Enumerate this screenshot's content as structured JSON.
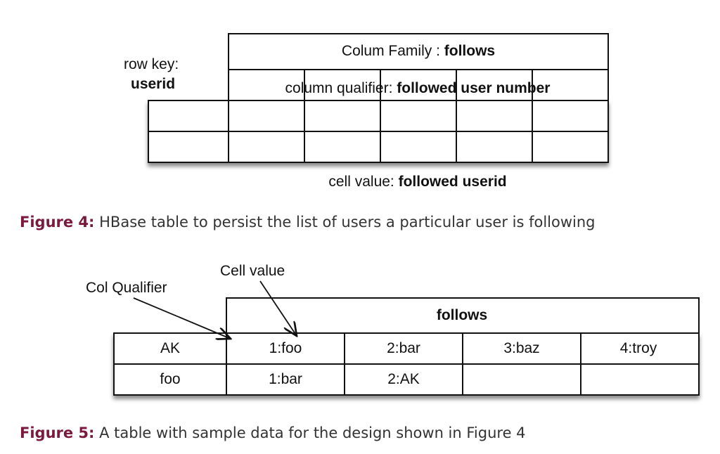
{
  "figure4": {
    "row_key_label": "row key:",
    "row_key_value": "userid",
    "column_family_label": "Colum Family : ",
    "column_family_value": "follows",
    "qualifier_label": "column qualifier: ",
    "qualifier_value": "followed user number",
    "cell_value_label": "cell value: ",
    "cell_value_value": "followed userid",
    "caption_label": "Figure 4:",
    "caption_text": " HBase table to persist the list of users a particular user is following"
  },
  "figure5": {
    "annotation_col_qualifier": "Col Qualifier",
    "annotation_cell_value": "Cell value",
    "family_header": "follows",
    "rows": [
      [
        "AK",
        "1:foo",
        "2:bar",
        "3:baz",
        "4:troy"
      ],
      [
        "foo",
        "1:bar",
        "2:AK",
        "",
        ""
      ]
    ],
    "caption_label": "Figure 5:",
    "caption_text": " A table with sample data for the design shown in Figure 4"
  }
}
